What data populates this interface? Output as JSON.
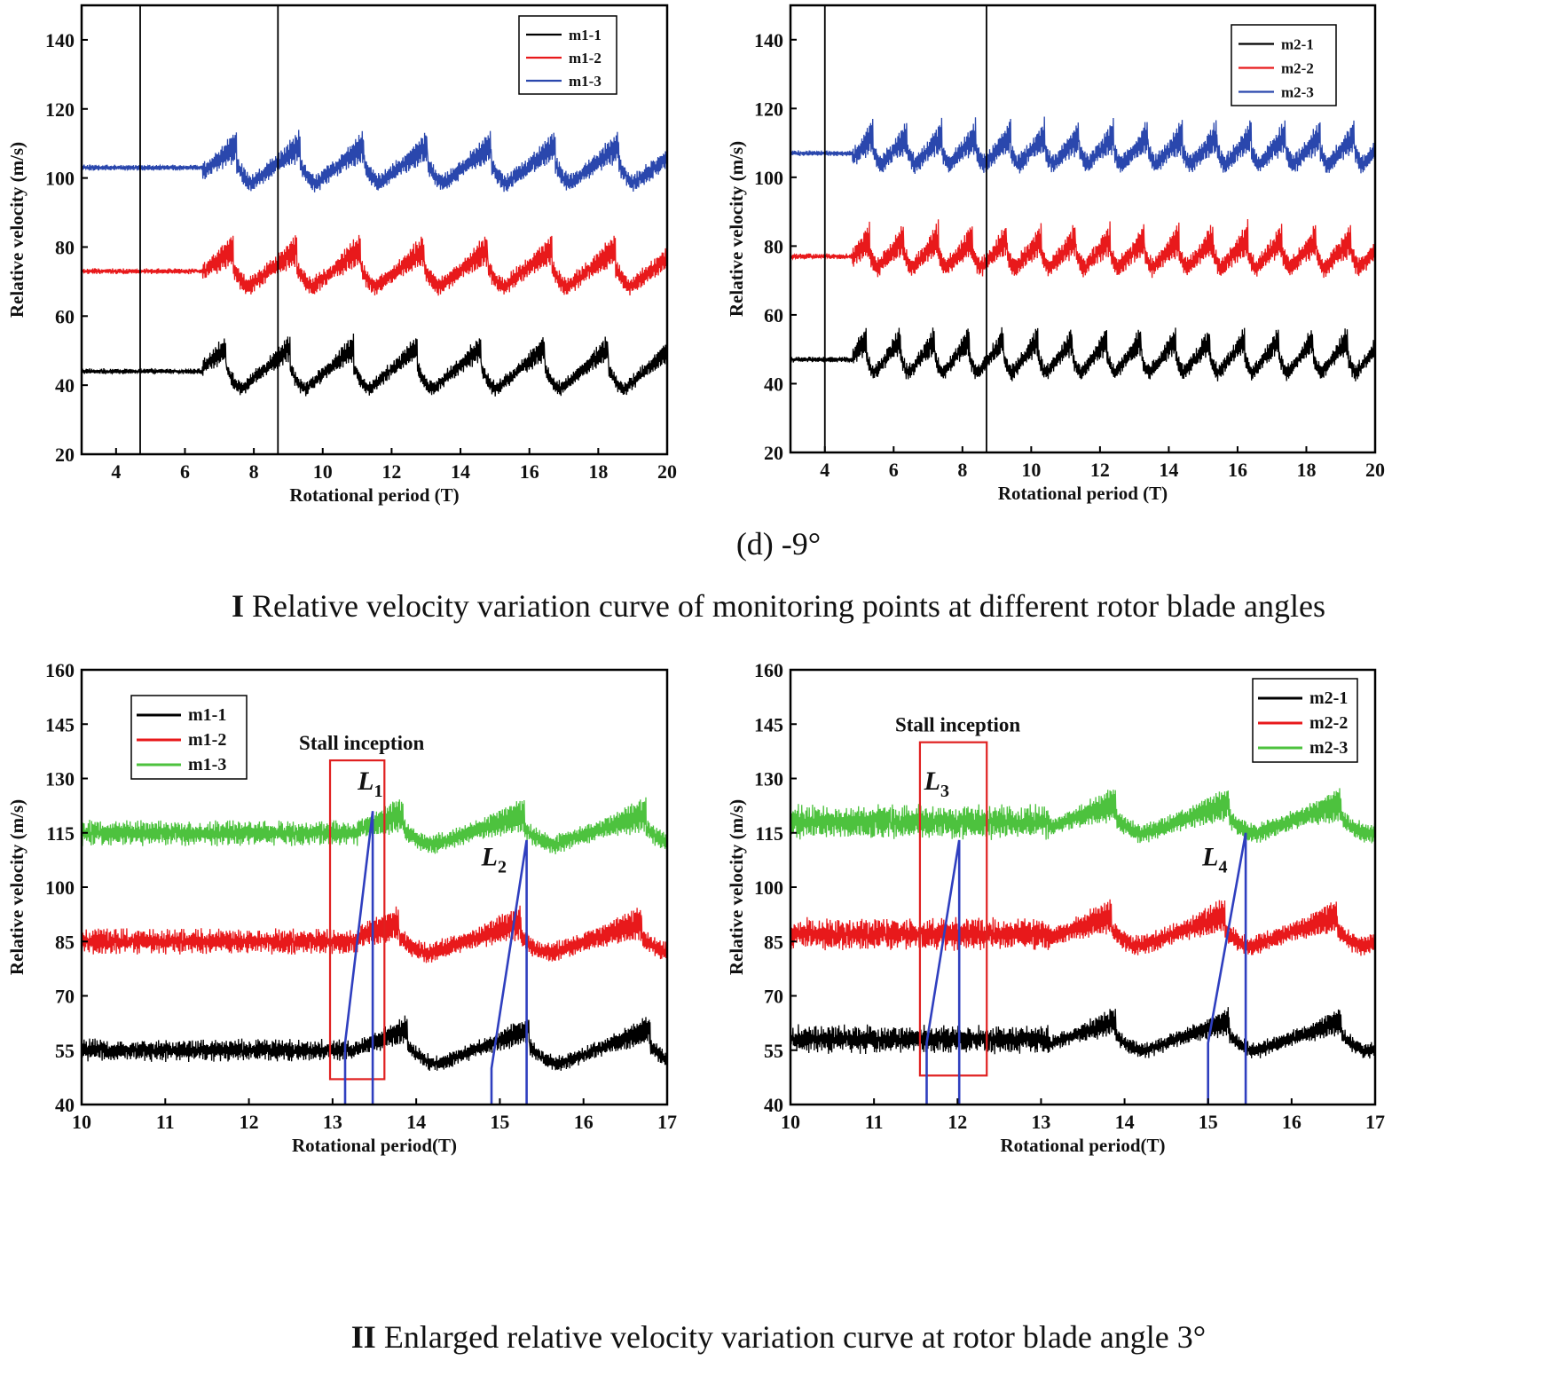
{
  "colors": {
    "black": "#000000",
    "red": "#e8191b",
    "blue": "#2a47ad",
    "green": "#4dc23e",
    "box_red": "#e02020",
    "line_blue": "#2f3fbf"
  },
  "captions": {
    "sub_d": "(d) -9°",
    "fig1_roman": "I",
    "fig1_text": "Relative velocity variation curve of monitoring points at different rotor blade angles",
    "fig2_roman": "II",
    "fig2_text": "Enlarged relative velocity variation curve at rotor blade angle 3",
    "fig2_degree": "°"
  },
  "chart_data": [
    {
      "type": "line",
      "id": "top-left",
      "xlabel": "Rotational period (T)",
      "ylabel": "Relative velocity (m/s)",
      "xlim": [
        3,
        20
      ],
      "ylim": [
        20,
        150
      ],
      "xticks": [
        4,
        6,
        8,
        10,
        12,
        14,
        16,
        18,
        20
      ],
      "yticks": [
        20,
        40,
        60,
        80,
        100,
        120,
        140
      ],
      "vlines": [
        4.7,
        8.7
      ],
      "legend_position": "top-right",
      "series": [
        {
          "name": "m1-1",
          "color": "#000000",
          "base": 44,
          "stall_start": 6.5,
          "period": 1.85,
          "phase": 7.2,
          "amp": 10,
          "osc": 3.5,
          "pre_noise": 0.6
        },
        {
          "name": "m1-2",
          "color": "#e8191b",
          "base": 73,
          "stall_start": 6.5,
          "period": 1.85,
          "phase": 7.4,
          "amp": 9,
          "osc": 4.5,
          "pre_noise": 0.6
        },
        {
          "name": "m1-3",
          "color": "#2a47ad",
          "base": 103,
          "stall_start": 6.5,
          "period": 1.85,
          "phase": 7.5,
          "amp": 9,
          "osc": 4.5,
          "pre_noise": 0.6
        }
      ]
    },
    {
      "type": "line",
      "id": "top-right",
      "xlabel": "Rotational period (T)",
      "ylabel": "Relative velocity (m/s)",
      "xlim": [
        3,
        20
      ],
      "ylim": [
        20,
        150
      ],
      "xticks": [
        4,
        6,
        8,
        10,
        12,
        14,
        16,
        18,
        20
      ],
      "yticks": [
        20,
        40,
        60,
        80,
        100,
        120,
        140
      ],
      "vlines": [
        4.0,
        8.7
      ],
      "legend_position": "top-right",
      "series": [
        {
          "name": "m2-1",
          "color": "#000000",
          "base": 47,
          "stall_start": 4.8,
          "period": 1.0,
          "phase": 5.2,
          "amp": 8,
          "osc": 4,
          "pre_noise": 0.6
        },
        {
          "name": "m2-2",
          "color": "#e8191b",
          "base": 77,
          "stall_start": 4.8,
          "period": 1.0,
          "phase": 5.3,
          "amp": 7,
          "osc": 5,
          "pre_noise": 0.6
        },
        {
          "name": "m2-3",
          "color": "#2a47ad",
          "base": 107,
          "stall_start": 4.8,
          "period": 1.0,
          "phase": 5.4,
          "amp": 7,
          "osc": 5,
          "pre_noise": 0.6
        }
      ]
    },
    {
      "type": "line",
      "id": "bottom-left",
      "xlabel": "Rotational period(T)",
      "ylabel": "Relative velocity (m/s)",
      "xlim": [
        10,
        17
      ],
      "ylim": [
        40,
        160
      ],
      "xticks": [
        10,
        11,
        12,
        13,
        14,
        15,
        16,
        17
      ],
      "yticks": [
        40,
        55,
        70,
        85,
        100,
        115,
        130,
        145,
        160
      ],
      "legend_position": "top-left",
      "stall_label": "Stall inception",
      "stall_box": {
        "x0": 12.97,
        "x1": 13.62,
        "y0": 47,
        "y1": 135
      },
      "lines": [
        {
          "label": "L",
          "sub": "1",
          "points": [
            [
              13.15,
              40
            ],
            [
              13.15,
              57
            ],
            [
              13.48,
              121
            ],
            [
              13.48,
              40
            ]
          ],
          "label_at": [
            13.3,
            127
          ]
        },
        {
          "label": "L",
          "sub": "2",
          "points": [
            [
              14.9,
              40
            ],
            [
              14.9,
              50
            ],
            [
              15.32,
              113
            ],
            [
              15.32,
              40
            ]
          ],
          "label_at": [
            14.78,
            106
          ]
        }
      ],
      "series": [
        {
          "name": "m1-1",
          "color": "#000000",
          "base": 55,
          "stall_start": 13.2,
          "period": 1.45,
          "phase": 13.9,
          "amp": 8,
          "osc": 3.5,
          "pre_noise": 2.2
        },
        {
          "name": "m1-2",
          "color": "#e8191b",
          "base": 85,
          "stall_start": 13.3,
          "period": 1.45,
          "phase": 13.8,
          "amp": 7,
          "osc": 4.5,
          "pre_noise": 2.5
        },
        {
          "name": "m1-3",
          "color": "#4dc23e",
          "base": 115,
          "stall_start": 13.3,
          "period": 1.45,
          "phase": 13.85,
          "amp": 7,
          "osc": 4.5,
          "pre_noise": 2.5
        }
      ]
    },
    {
      "type": "line",
      "id": "bottom-right",
      "xlabel": "Rotational period(T)",
      "ylabel": "Relative velocity (m/s)",
      "xlim": [
        10,
        17
      ],
      "ylim": [
        40,
        160
      ],
      "xticks": [
        10,
        11,
        12,
        13,
        14,
        15,
        16,
        17
      ],
      "yticks": [
        40,
        55,
        70,
        85,
        100,
        115,
        130,
        145,
        160
      ],
      "legend_position": "top-right",
      "stall_label": "Stall inception",
      "stall_box": {
        "x0": 11.55,
        "x1": 12.35,
        "y0": 48,
        "y1": 140
      },
      "lines": [
        {
          "label": "L",
          "sub": "3",
          "points": [
            [
              11.63,
              40
            ],
            [
              11.63,
              57
            ],
            [
              12.02,
              113
            ],
            [
              12.02,
              40
            ]
          ],
          "label_at": [
            11.6,
            127
          ]
        },
        {
          "label": "L",
          "sub": "4",
          "points": [
            [
              15.0,
              40
            ],
            [
              15.0,
              57
            ],
            [
              15.45,
              115
            ],
            [
              15.45,
              40
            ]
          ],
          "label_at": [
            14.93,
            106
          ]
        }
      ],
      "series": [
        {
          "name": "m2-1",
          "color": "#000000",
          "base": 58,
          "stall_start": 13.1,
          "period": 1.35,
          "phase": 13.9,
          "amp": 7,
          "osc": 3.5,
          "pre_noise": 2.8
        },
        {
          "name": "m2-2",
          "color": "#e8191b",
          "base": 87,
          "stall_start": 13.1,
          "period": 1.35,
          "phase": 13.85,
          "amp": 7,
          "osc": 4.5,
          "pre_noise": 3.2
        },
        {
          "name": "m2-3",
          "color": "#4dc23e",
          "base": 118,
          "stall_start": 13.1,
          "period": 1.35,
          "phase": 13.9,
          "amp": 7,
          "osc": 4.5,
          "pre_noise": 3.4
        }
      ]
    }
  ]
}
